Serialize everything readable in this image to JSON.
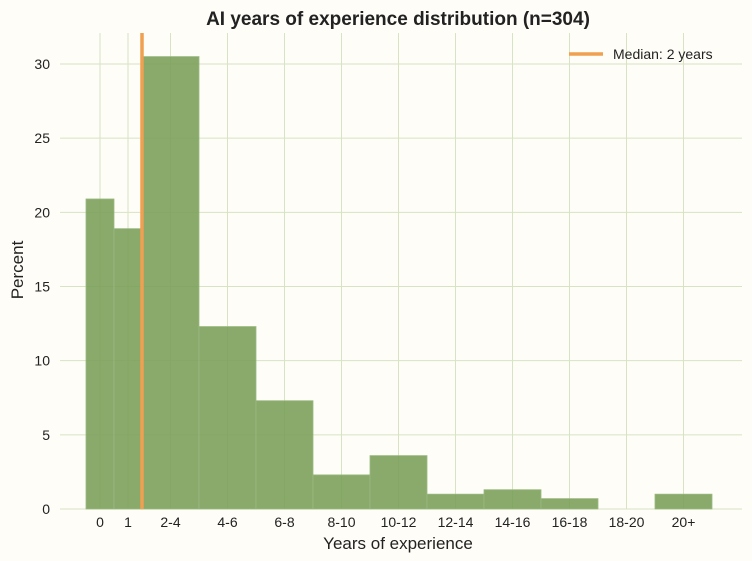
{
  "chart_data": {
    "type": "bar",
    "title": "AI years of experience distribution (n=304)",
    "xlabel": "Years of experience",
    "ylabel": "Percent",
    "categories": [
      "0",
      "1",
      "2-4",
      "4-6",
      "6-8",
      "8-10",
      "10-12",
      "12-14",
      "14-16",
      "16-18",
      "18-20",
      "20+"
    ],
    "values": [
      20.9,
      18.9,
      30.5,
      12.3,
      7.3,
      2.3,
      3.6,
      1.0,
      1.3,
      0.7,
      0,
      1.0
    ],
    "bin_edges": [
      -0.5,
      0.5,
      1.5,
      3.5,
      5.5,
      7.5,
      9.5,
      11.5,
      13.5,
      15.5,
      17.5,
      19.5,
      21.5
    ],
    "tick_positions": [
      0,
      1,
      2.5,
      4.5,
      6.5,
      8.5,
      10.5,
      12.5,
      14.5,
      16.5,
      18.5,
      20.5
    ],
    "ylim": [
      0,
      32
    ],
    "yticks": [
      0,
      5,
      10,
      15,
      20,
      25,
      30
    ],
    "grid": true,
    "median": {
      "value": 1.5,
      "label": "Median: 2 years",
      "color": "#f0a050"
    },
    "bar_color": "#7a9e58",
    "grid_color": "#d6e4c2",
    "legend_position": "top-right"
  }
}
